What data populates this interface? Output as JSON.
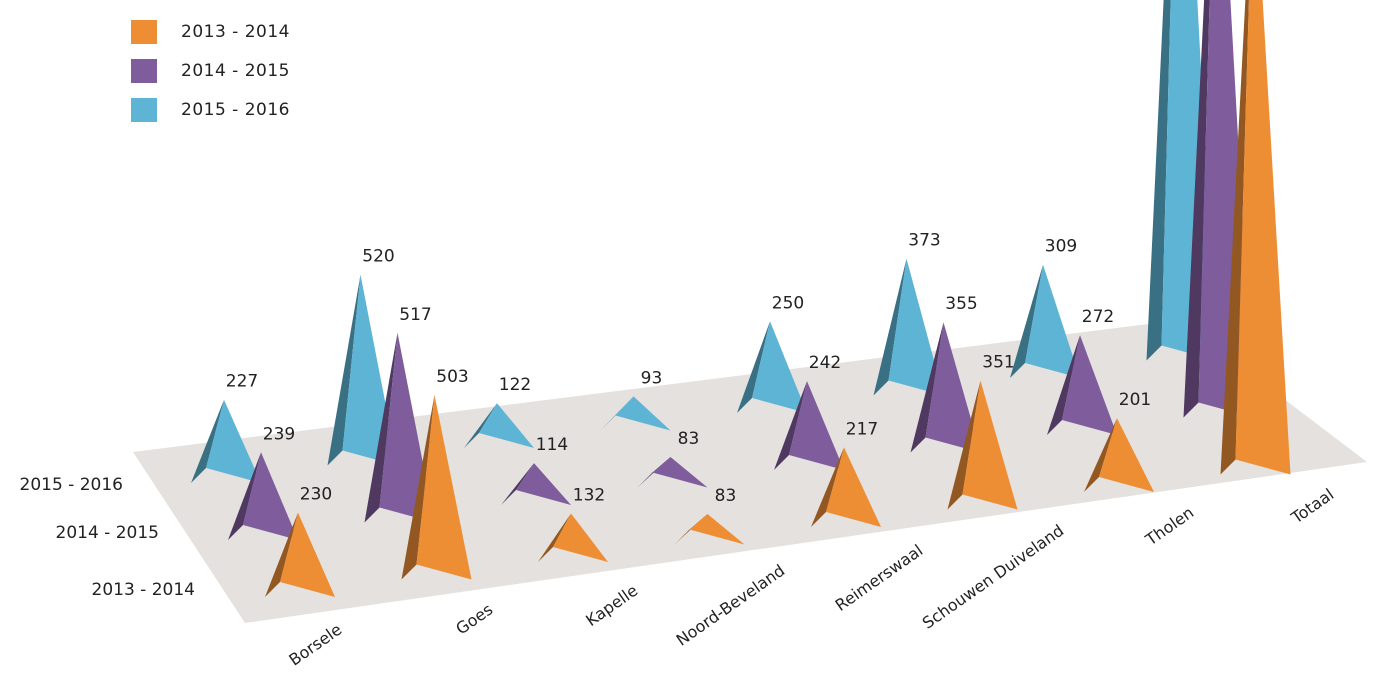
{
  "chart_data": {
    "type": "bar",
    "style": "3d-pyramid",
    "categories": [
      "Borsele",
      "Goes",
      "Kapelle",
      "Noord-Beveland",
      "Reimerswaal",
      "Schouwen Duiveland",
      "Tholen",
      "Totaal"
    ],
    "series": [
      {
        "name": "2013 - 2014",
        "color": "#ED8E35",
        "values": [
          230,
          503,
          132,
          83,
          217,
          351,
          201,
          1717
        ]
      },
      {
        "name": "2014 - 2015",
        "color": "#7F5C9B",
        "values": [
          239,
          517,
          114,
          83,
          242,
          355,
          272,
          1822
        ]
      },
      {
        "name": "2015 - 2016",
        "color": "#5EB4D4",
        "values": [
          227,
          520,
          122,
          93,
          250,
          373,
          309,
          1894
        ]
      }
    ],
    "depth_labels": [
      "2013 - 2014",
      "2014 - 2015",
      "2015 - 2016"
    ],
    "data_labels_shown": [
      true,
      true,
      true,
      true,
      true,
      true,
      true,
      false
    ],
    "floor_color": "#E5E1DE",
    "legend_position": "top-left"
  }
}
